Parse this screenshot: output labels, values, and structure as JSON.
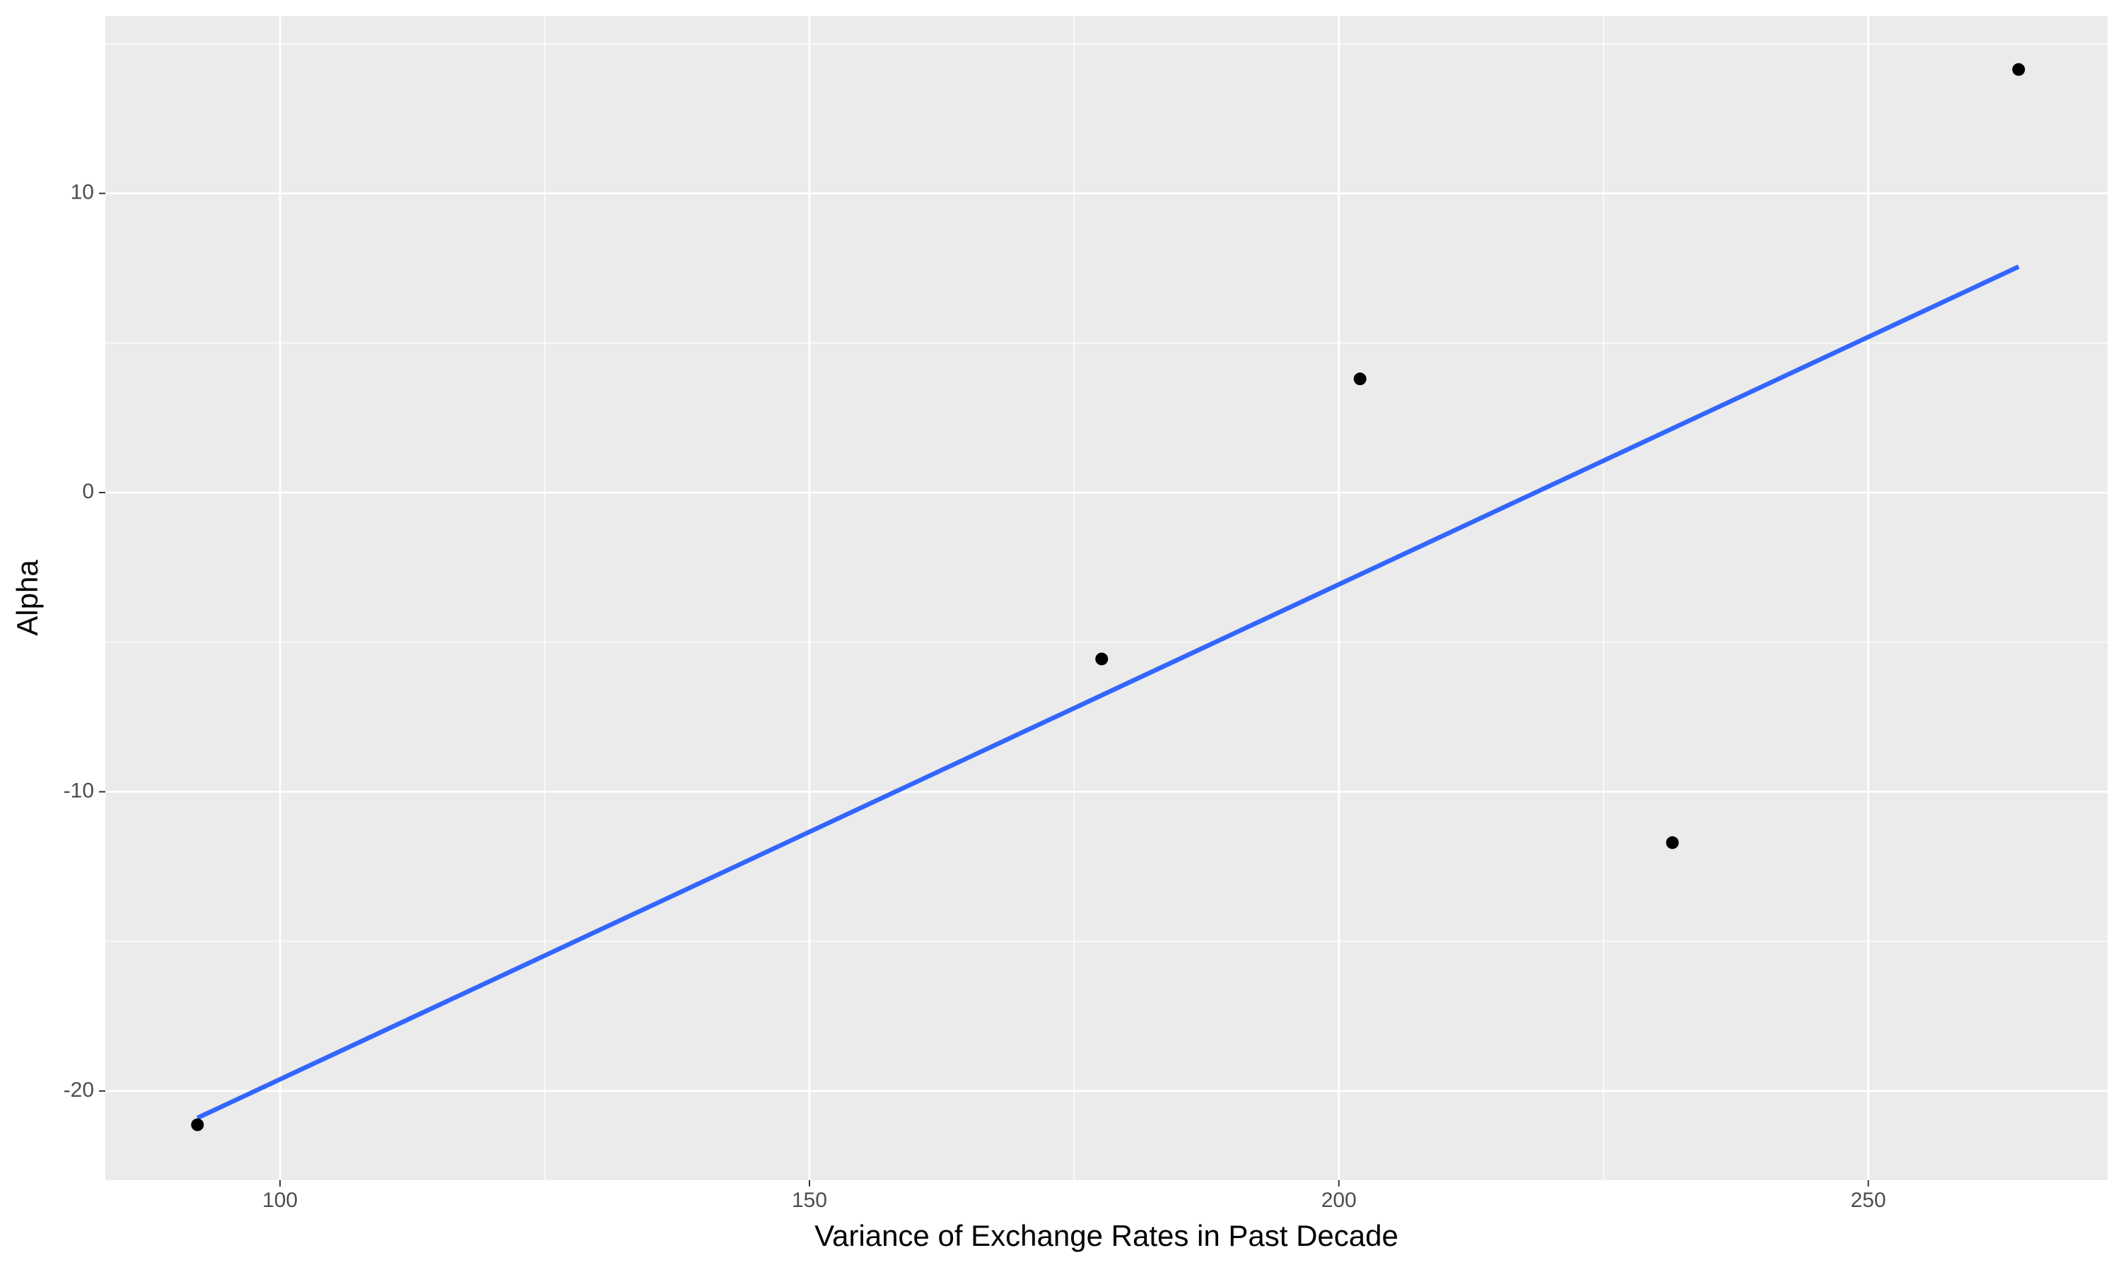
{
  "chart_data": {
    "type": "scatter",
    "x_label": "Variance of Exchange Rates in Past Decade",
    "y_label": "Alpha",
    "xlim": [
      83.5,
      272.6
    ],
    "ylim": [
      -22.98,
      15.92
    ],
    "xticks": [
      100,
      150,
      200,
      250
    ],
    "yticks": [
      -20,
      -10,
      0,
      10
    ],
    "xminor": [
      125,
      175,
      225
    ],
    "yminor": [
      -15,
      -5,
      5,
      15
    ],
    "grid": true,
    "background": "#EBEBEB",
    "series": [
      {
        "type": "scatter",
        "color": "#000000",
        "x": [
          92.2,
          177.6,
          202.0,
          231.5,
          264.2
        ],
        "values": [
          -21.13,
          -5.56,
          3.8,
          -11.7,
          14.14
        ]
      },
      {
        "type": "line",
        "color": "#3366FF",
        "x": [
          92.2,
          264.2
        ],
        "values": [
          -20.9,
          7.55
        ]
      }
    ]
  }
}
